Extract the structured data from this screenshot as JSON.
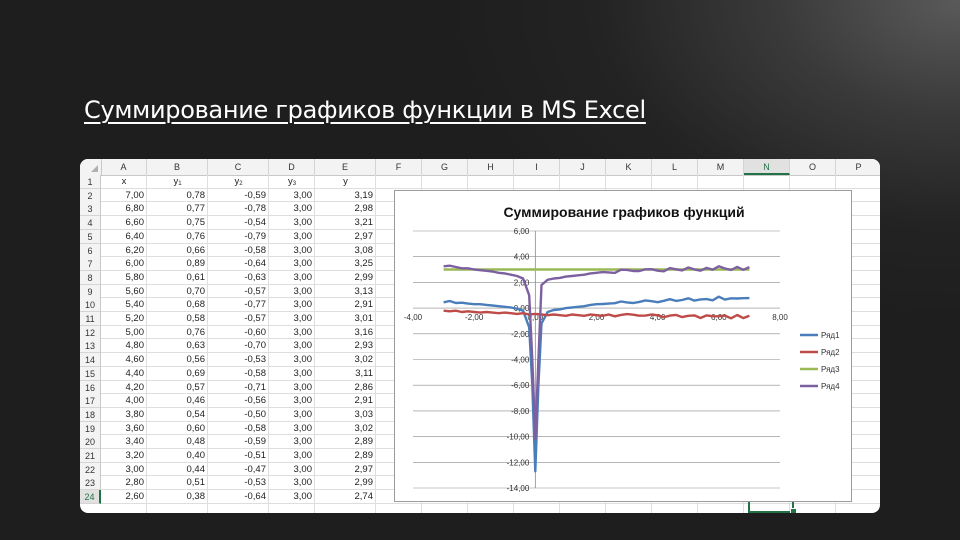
{
  "slide": {
    "title": "Суммирование графиков функции в MS Excel"
  },
  "sheet": {
    "columns": [
      "A",
      "B",
      "C",
      "D",
      "E",
      "F",
      "G",
      "H",
      "I",
      "J",
      "K",
      "L",
      "M",
      "N",
      "O",
      "P"
    ],
    "selected_column": "N",
    "selected_row": "24",
    "header_row": {
      "x": "x",
      "y1": "y",
      "y1_sub": "1",
      "y2": "y",
      "y2_sub": "2",
      "y3": "y",
      "y3_sub": "3",
      "y": "y"
    },
    "rows": [
      {
        "n": "2",
        "x": "7,00",
        "y1": "0,78",
        "y2": "-0,59",
        "y3": "3,00",
        "y": "3,19"
      },
      {
        "n": "3",
        "x": "6,80",
        "y1": "0,77",
        "y2": "-0,78",
        "y3": "3,00",
        "y": "2,98"
      },
      {
        "n": "4",
        "x": "6,60",
        "y1": "0,75",
        "y2": "-0,54",
        "y3": "3,00",
        "y": "3,21"
      },
      {
        "n": "5",
        "x": "6,40",
        "y1": "0,76",
        "y2": "-0,79",
        "y3": "3,00",
        "y": "2,97"
      },
      {
        "n": "6",
        "x": "6,20",
        "y1": "0,66",
        "y2": "-0,58",
        "y3": "3,00",
        "y": "3,08"
      },
      {
        "n": "7",
        "x": "6,00",
        "y1": "0,89",
        "y2": "-0,64",
        "y3": "3,00",
        "y": "3,25"
      },
      {
        "n": "8",
        "x": "5,80",
        "y1": "0,61",
        "y2": "-0,63",
        "y3": "3,00",
        "y": "2,99"
      },
      {
        "n": "9",
        "x": "5,60",
        "y1": "0,70",
        "y2": "-0,57",
        "y3": "3,00",
        "y": "3,13"
      },
      {
        "n": "10",
        "x": "5,40",
        "y1": "0,68",
        "y2": "-0,77",
        "y3": "3,00",
        "y": "2,91"
      },
      {
        "n": "11",
        "x": "5,20",
        "y1": "0,58",
        "y2": "-0,57",
        "y3": "3,00",
        "y": "3,01"
      },
      {
        "n": "12",
        "x": "5,00",
        "y1": "0,76",
        "y2": "-0,60",
        "y3": "3,00",
        "y": "3,16"
      },
      {
        "n": "13",
        "x": "4,80",
        "y1": "0,63",
        "y2": "-0,70",
        "y3": "3,00",
        "y": "2,93"
      },
      {
        "n": "14",
        "x": "4,60",
        "y1": "0,56",
        "y2": "-0,53",
        "y3": "3,00",
        "y": "3,02"
      },
      {
        "n": "15",
        "x": "4,40",
        "y1": "0,69",
        "y2": "-0,58",
        "y3": "3,00",
        "y": "3,11"
      },
      {
        "n": "16",
        "x": "4,20",
        "y1": "0,57",
        "y2": "-0,71",
        "y3": "3,00",
        "y": "2,86"
      },
      {
        "n": "17",
        "x": "4,00",
        "y1": "0,46",
        "y2": "-0,56",
        "y3": "3,00",
        "y": "2,91"
      },
      {
        "n": "18",
        "x": "3,80",
        "y1": "0,54",
        "y2": "-0,50",
        "y3": "3,00",
        "y": "3,03"
      },
      {
        "n": "19",
        "x": "3,60",
        "y1": "0,60",
        "y2": "-0,58",
        "y3": "3,00",
        "y": "3,02"
      },
      {
        "n": "20",
        "x": "3,40",
        "y1": "0,48",
        "y2": "-0,59",
        "y3": "3,00",
        "y": "2,89"
      },
      {
        "n": "21",
        "x": "3,20",
        "y1": "0,40",
        "y2": "-0,51",
        "y3": "3,00",
        "y": "2,89"
      },
      {
        "n": "22",
        "x": "3,00",
        "y1": "0,44",
        "y2": "-0,47",
        "y3": "3,00",
        "y": "2,97"
      },
      {
        "n": "23",
        "x": "2,80",
        "y1": "0,51",
        "y2": "-0,53",
        "y3": "3,00",
        "y": "2,99"
      },
      {
        "n": "24",
        "x": "2,60",
        "y1": "0,38",
        "y2": "-0,64",
        "y3": "3,00",
        "y": "2,74"
      }
    ]
  },
  "chart_data": {
    "type": "line",
    "title": "Суммирование графиков функций",
    "xlim": [
      -4,
      8
    ],
    "ylim": [
      -14,
      6
    ],
    "x_ticks": [
      "-4,00",
      "-2,00",
      "0,00",
      "2,00",
      "4,00",
      "6,00",
      "8,00"
    ],
    "y_ticks": [
      "6,00",
      "4,00",
      "2,00",
      "0,00",
      "-2,00",
      "-4,00",
      "-6,00",
      "-8,00",
      "-10,00",
      "-12,00",
      "-14,00"
    ],
    "grid": "horizontal",
    "legend_position": "right",
    "series": [
      {
        "name": "Ряд1",
        "color": "#4a7ebb",
        "x": [
          -3,
          -2.8,
          -2.6,
          -2.4,
          -2.2,
          -2,
          -1.8,
          -1.6,
          -1.4,
          -1.2,
          -1,
          -0.8,
          -0.6,
          -0.4,
          -0.2,
          -0.1,
          0,
          0.1,
          0.2,
          0.4,
          0.6,
          0.8,
          1,
          1.2,
          1.4,
          1.6,
          1.8,
          2,
          2.2,
          2.4,
          2.6,
          2.8,
          3,
          3.2,
          3.4,
          3.6,
          3.8,
          4,
          4.2,
          4.4,
          4.6,
          4.8,
          5,
          5.2,
          5.4,
          5.6,
          5.8,
          6,
          6.2,
          6.4,
          6.6,
          6.8,
          7
        ],
        "y": [
          0.45,
          0.55,
          0.4,
          0.42,
          0.35,
          0.3,
          0.3,
          0.25,
          0.2,
          0.15,
          0.1,
          0.05,
          -0.05,
          -0.2,
          -1.5,
          -6,
          -12.7,
          -6,
          -1.2,
          -0.3,
          -0.15,
          -0.1,
          0.0,
          0.05,
          0.1,
          0.15,
          0.25,
          0.3,
          0.32,
          0.35,
          0.38,
          0.51,
          0.44,
          0.4,
          0.48,
          0.6,
          0.54,
          0.46,
          0.57,
          0.69,
          0.56,
          0.63,
          0.76,
          0.58,
          0.68,
          0.7,
          0.61,
          0.89,
          0.66,
          0.76,
          0.75,
          0.77,
          0.78
        ]
      },
      {
        "name": "Ряд2",
        "color": "#be4b48",
        "x": [
          -3,
          -2.8,
          -2.6,
          -2.4,
          -2.2,
          -2,
          -1.8,
          -1.6,
          -1.4,
          -1.2,
          -1,
          -0.8,
          -0.6,
          -0.4,
          -0.2,
          0,
          0.2,
          0.4,
          0.6,
          0.8,
          1,
          1.2,
          1.4,
          1.6,
          1.8,
          2,
          2.2,
          2.4,
          2.6,
          2.8,
          3,
          3.2,
          3.4,
          3.6,
          3.8,
          4,
          4.2,
          4.4,
          4.6,
          4.8,
          5,
          5.2,
          5.4,
          5.6,
          5.8,
          6,
          6.2,
          6.4,
          6.6,
          6.8,
          7
        ],
        "y": [
          -0.2,
          -0.25,
          -0.2,
          -0.3,
          -0.25,
          -0.3,
          -0.35,
          -0.3,
          -0.35,
          -0.4,
          -0.35,
          -0.4,
          -0.45,
          -0.4,
          -0.5,
          -0.45,
          -0.5,
          -0.55,
          -0.5,
          -0.55,
          -0.6,
          -0.5,
          -0.55,
          -0.6,
          -0.5,
          -0.55,
          -0.6,
          -0.5,
          -0.64,
          -0.53,
          -0.47,
          -0.51,
          -0.59,
          -0.58,
          -0.5,
          -0.56,
          -0.71,
          -0.58,
          -0.53,
          -0.7,
          -0.6,
          -0.57,
          -0.77,
          -0.57,
          -0.63,
          -0.64,
          -0.58,
          -0.79,
          -0.54,
          -0.78,
          -0.59
        ]
      },
      {
        "name": "Ряд3",
        "color": "#98b954",
        "x": [
          -3,
          7
        ],
        "y": [
          3,
          3
        ]
      },
      {
        "name": "Ряд4",
        "color": "#7d60a0",
        "x": [
          -3,
          -2.8,
          -2.6,
          -2.4,
          -2.2,
          -2,
          -1.8,
          -1.6,
          -1.4,
          -1.2,
          -1,
          -0.8,
          -0.6,
          -0.4,
          -0.2,
          -0.1,
          0,
          0.1,
          0.2,
          0.4,
          0.6,
          0.8,
          1,
          1.2,
          1.4,
          1.6,
          1.8,
          2,
          2.2,
          2.4,
          2.6,
          2.8,
          3,
          3.2,
          3.4,
          3.6,
          3.8,
          4,
          4.2,
          4.4,
          4.6,
          4.8,
          5,
          5.2,
          5.4,
          5.6,
          5.8,
          6,
          6.2,
          6.4,
          6.6,
          6.8,
          7
        ],
        "y": [
          3.25,
          3.3,
          3.2,
          3.1,
          3.1,
          3.0,
          2.95,
          2.9,
          2.85,
          2.75,
          2.7,
          2.6,
          2.5,
          2.3,
          1.0,
          -4,
          -10.2,
          -4,
          1.8,
          2.2,
          2.3,
          2.35,
          2.45,
          2.5,
          2.55,
          2.6,
          2.7,
          2.75,
          2.8,
          2.78,
          2.74,
          2.99,
          2.97,
          2.89,
          2.89,
          3.02,
          3.03,
          2.91,
          2.86,
          3.11,
          3.02,
          2.93,
          3.16,
          3.01,
          2.91,
          3.13,
          2.99,
          3.25,
          3.08,
          2.97,
          3.21,
          2.98,
          3.19
        ]
      }
    ]
  }
}
